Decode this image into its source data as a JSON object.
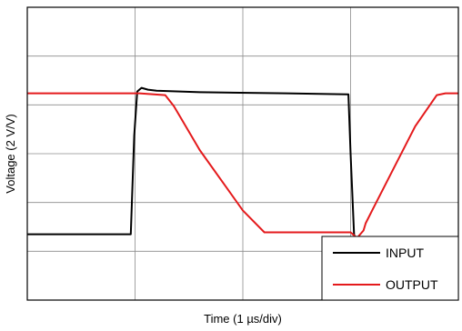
{
  "chart_data": {
    "type": "line",
    "title": "",
    "xlabel": "Time (1 µs/div)",
    "ylabel": "Voltage (2 V/V)",
    "xlim": [
      0,
      10
    ],
    "ylim": [
      0,
      8
    ],
    "grid": true,
    "legend_placement": "bottom-right",
    "series": [
      {
        "name": "INPUT",
        "color": "#000000",
        "x": [
          0,
          2.4,
          2.48,
          2.55,
          2.65,
          2.8,
          3.0,
          4.0,
          6.0,
          7.45,
          7.5,
          7.58,
          7.62,
          7.7,
          8.0,
          9.0,
          10.0
        ],
        "y": [
          1.8,
          1.8,
          4.5,
          5.7,
          5.8,
          5.75,
          5.72,
          5.68,
          5.65,
          5.62,
          4.0,
          1.8,
          1.6,
          1.55,
          1.55,
          1.6,
          1.62
        ]
      },
      {
        "name": "OUTPUT",
        "color": "#e41a1c",
        "x": [
          0,
          2.4,
          2.6,
          3.2,
          3.4,
          4.0,
          5.0,
          5.5,
          6.0,
          7.0,
          7.5,
          7.65,
          7.8,
          7.85,
          8.0,
          8.5,
          9.0,
          9.5,
          9.7,
          10.0
        ],
        "y": [
          5.65,
          5.65,
          5.65,
          5.6,
          5.3,
          4.1,
          2.45,
          1.85,
          1.85,
          1.85,
          1.85,
          1.7,
          1.9,
          2.1,
          2.45,
          3.6,
          4.75,
          5.6,
          5.65,
          5.65
        ]
      }
    ]
  }
}
